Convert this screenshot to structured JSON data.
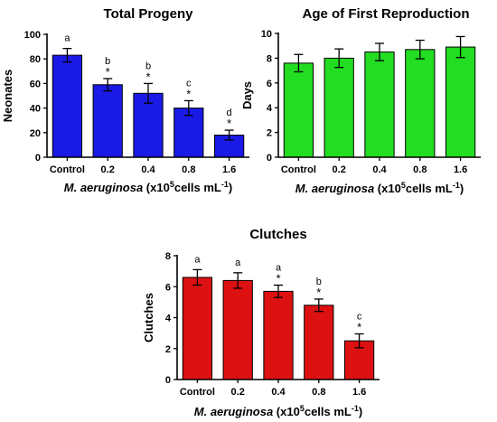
{
  "chart_data": [
    {
      "type": "bar",
      "title": "Total Progeny",
      "xlabel": "M. aeruginosa (x10⁵cells mL⁻¹)",
      "xlabel_parts": {
        "species": "M. aeruginosa",
        "pre": " (x10",
        "exp": "5",
        "mid": "cells mL",
        "exp2": "-1",
        "post": ")"
      },
      "ylabel": "Neonates",
      "categories": [
        "Control",
        "0.2",
        "0.4",
        "0.8",
        "1.6"
      ],
      "values": [
        83,
        59,
        52,
        40,
        18
      ],
      "errors": [
        5.5,
        5,
        8,
        6,
        4
      ],
      "letters": [
        "a",
        "b",
        "b",
        "c",
        "d"
      ],
      "stars": [
        "",
        "*",
        "*",
        "*",
        "*"
      ],
      "ylim": [
        0,
        100
      ],
      "yticks": [
        0,
        20,
        40,
        60,
        80,
        100
      ],
      "color": "#1a1ae6"
    },
    {
      "type": "bar",
      "title": "Age of First Reproduction",
      "xlabel": "M. aeruginosa (x10⁵cells mL⁻¹)",
      "xlabel_parts": {
        "species": "M. aeruginosa",
        "pre": " (x10",
        "exp": "5",
        "mid": "cells mL",
        "exp2": "-1",
        "post": ")"
      },
      "ylabel": "Days",
      "categories": [
        "Control",
        "0.2",
        "0.4",
        "0.8",
        "1.6"
      ],
      "values": [
        7.6,
        8.0,
        8.5,
        8.7,
        8.9
      ],
      "errors": [
        0.7,
        0.75,
        0.7,
        0.75,
        0.85
      ],
      "letters": [
        "",
        "",
        "",
        "",
        ""
      ],
      "stars": [
        "",
        "",
        "",
        "",
        ""
      ],
      "ylim": [
        0,
        10
      ],
      "yticks": [
        0,
        2,
        4,
        6,
        8,
        10
      ],
      "color": "#22dd22"
    },
    {
      "type": "bar",
      "title": "Clutches",
      "xlabel": "M. aeruginosa (x10⁵cells mL⁻¹)",
      "xlabel_parts": {
        "species": "M. aeruginosa",
        "pre": " (x10",
        "exp": "5",
        "mid": "cells mL",
        "exp2": "-1",
        "post": ")"
      },
      "ylabel": "Clutches",
      "categories": [
        "Control",
        "0.2",
        "0.4",
        "0.8",
        "1.6"
      ],
      "values": [
        6.6,
        6.4,
        5.7,
        4.8,
        2.5
      ],
      "errors": [
        0.5,
        0.5,
        0.4,
        0.4,
        0.45
      ],
      "letters": [
        "a",
        "a",
        "a",
        "b",
        "c"
      ],
      "stars": [
        "",
        "",
        "*",
        "*",
        "*"
      ],
      "ylim": [
        0,
        8
      ],
      "yticks": [
        0,
        2,
        4,
        6,
        8
      ],
      "color": "#dd1111"
    }
  ]
}
